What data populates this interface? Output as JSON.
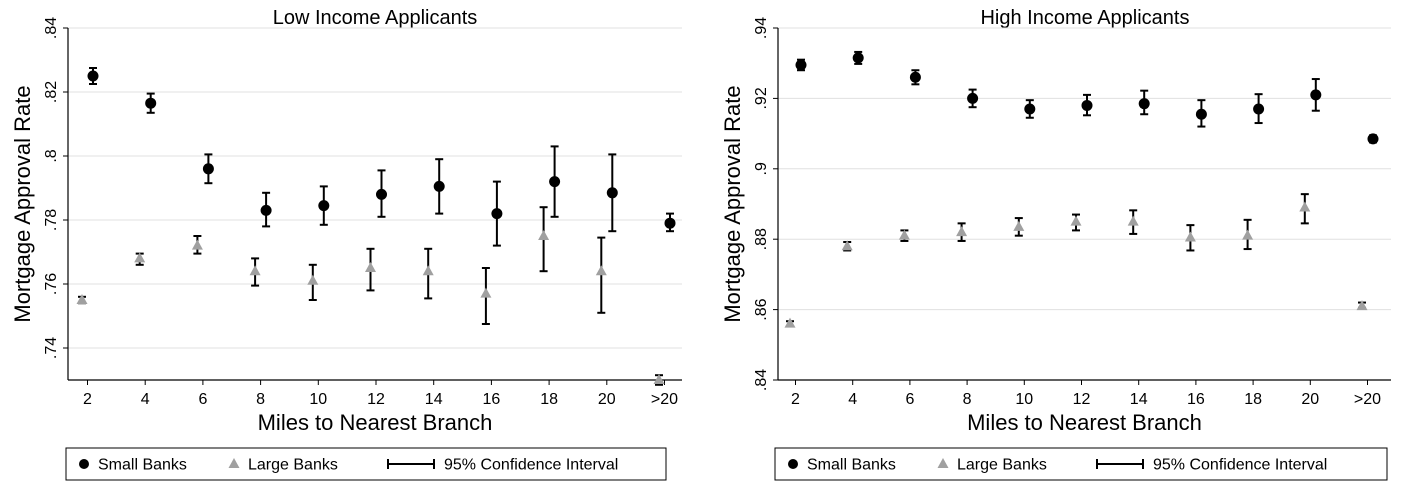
{
  "chart_data": [
    {
      "type": "scatter",
      "title": "Low Income Applicants",
      "xlabel": "Miles to Nearest Branch",
      "ylabel": "Mortgage Approval Rate",
      "categories": [
        "2",
        "4",
        "6",
        "8",
        "10",
        "12",
        "14",
        "16",
        "18",
        "20",
        ">20"
      ],
      "ylim": [
        0.73,
        0.84
      ],
      "yticks": [
        ".74",
        ".76",
        ".78",
        ".8",
        ".82",
        ".84"
      ],
      "grid": true,
      "legend_position": "bottom",
      "legend": [
        "Small Banks",
        "Large Banks",
        "95% Confidence Interval"
      ],
      "series": [
        {
          "name": "Small Banks",
          "marker": "circle",
          "color": "#000000",
          "values": [
            0.825,
            0.8165,
            0.796,
            0.783,
            0.7845,
            0.788,
            0.7905,
            0.782,
            0.792,
            0.7885,
            0.779
          ],
          "ci_low": [
            0.8225,
            0.8135,
            0.7915,
            0.778,
            0.7785,
            0.781,
            0.782,
            0.772,
            0.781,
            0.7765,
            0.7765
          ],
          "ci_high": [
            0.8275,
            0.8195,
            0.8005,
            0.7885,
            0.7905,
            0.7955,
            0.799,
            0.792,
            0.803,
            0.8005,
            0.782
          ]
        },
        {
          "name": "Large Banks",
          "marker": "triangle",
          "color": "#a0a0a0",
          "values": [
            0.755,
            0.768,
            0.772,
            0.764,
            0.761,
            0.765,
            0.764,
            0.757,
            0.775,
            0.764,
            0.73
          ],
          "ci_low": [
            0.754,
            0.766,
            0.7695,
            0.7595,
            0.755,
            0.758,
            0.7555,
            0.7475,
            0.764,
            0.751,
            0.7285
          ],
          "ci_high": [
            0.756,
            0.7695,
            0.775,
            0.768,
            0.766,
            0.771,
            0.771,
            0.765,
            0.784,
            0.7745,
            0.7315
          ]
        }
      ]
    },
    {
      "type": "scatter",
      "title": "High Income Applicants",
      "xlabel": "Miles to Nearest Branch",
      "ylabel": "Mortgage Approval Rate",
      "categories": [
        "2",
        "4",
        "6",
        "8",
        "10",
        "12",
        "14",
        "16",
        "18",
        "20",
        ">20"
      ],
      "ylim": [
        0.84,
        0.94
      ],
      "yticks": [
        ".84",
        ".86",
        ".88",
        ".9",
        ".92",
        ".94"
      ],
      "grid": true,
      "legend_position": "bottom",
      "legend": [
        "Small Banks",
        "Large Banks",
        "95% Confidence Interval"
      ],
      "series": [
        {
          "name": "Small Banks",
          "marker": "circle",
          "color": "#000000",
          "values": [
            0.9295,
            0.9315,
            0.926,
            0.92,
            0.917,
            0.918,
            0.9185,
            0.9155,
            0.917,
            0.921,
            0.9085
          ],
          "ci_low": [
            0.928,
            0.9298,
            0.924,
            0.9175,
            0.9145,
            0.9152,
            0.9155,
            0.912,
            0.913,
            0.9165,
            0.9075
          ],
          "ci_high": [
            0.931,
            0.9332,
            0.928,
            0.9225,
            0.9195,
            0.921,
            0.9222,
            0.9195,
            0.9212,
            0.9255,
            0.9095
          ]
        },
        {
          "name": "Large Banks",
          "marker": "triangle",
          "color": "#a0a0a0",
          "values": [
            0.856,
            0.878,
            0.881,
            0.882,
            0.8835,
            0.885,
            0.885,
            0.8805,
            0.881,
            0.889,
            0.861
          ],
          "ci_low": [
            0.8553,
            0.8768,
            0.8795,
            0.8795,
            0.881,
            0.8825,
            0.8815,
            0.8768,
            0.8772,
            0.8845,
            0.8605
          ],
          "ci_high": [
            0.8567,
            0.8792,
            0.8825,
            0.8845,
            0.886,
            0.887,
            0.8882,
            0.884,
            0.8855,
            0.8928,
            0.862
          ]
        }
      ]
    }
  ]
}
